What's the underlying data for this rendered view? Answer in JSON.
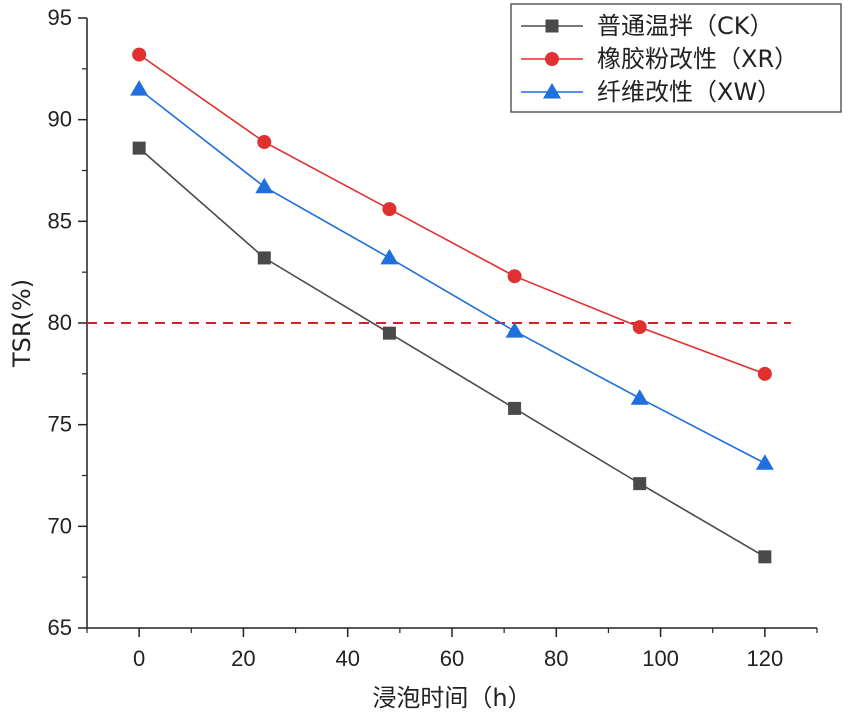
{
  "chart_data": {
    "type": "line",
    "title": "",
    "xlabel": "浸泡时间（h）",
    "ylabel": "TSR(%)",
    "xlim": [
      -10,
      130
    ],
    "ylim": [
      65,
      95
    ],
    "x_ticks": [
      0,
      20,
      40,
      60,
      80,
      100,
      120
    ],
    "y_ticks": [
      65,
      70,
      75,
      80,
      85,
      90,
      95
    ],
    "x": [
      0,
      24,
      48,
      72,
      96,
      120
    ],
    "series": [
      {
        "name": "普通温拌（CK）",
        "color": "#4a4a4a",
        "marker": "square",
        "values": [
          88.6,
          83.2,
          79.5,
          75.8,
          72.1,
          68.5
        ]
      },
      {
        "name": "橡胶粉改性（XR）",
        "color": "#e03030",
        "marker": "circle",
        "values": [
          93.2,
          88.9,
          85.6,
          82.3,
          79.8,
          77.5
        ]
      },
      {
        "name": "纤维改性（XW）",
        "color": "#1f6fdc",
        "marker": "triangle",
        "values": [
          91.5,
          86.7,
          83.2,
          79.6,
          76.3,
          73.1
        ]
      }
    ],
    "reference_line": {
      "y": 80,
      "color": "#d42020",
      "style": "dashed"
    },
    "legend_position": "top-right",
    "grid": false
  }
}
